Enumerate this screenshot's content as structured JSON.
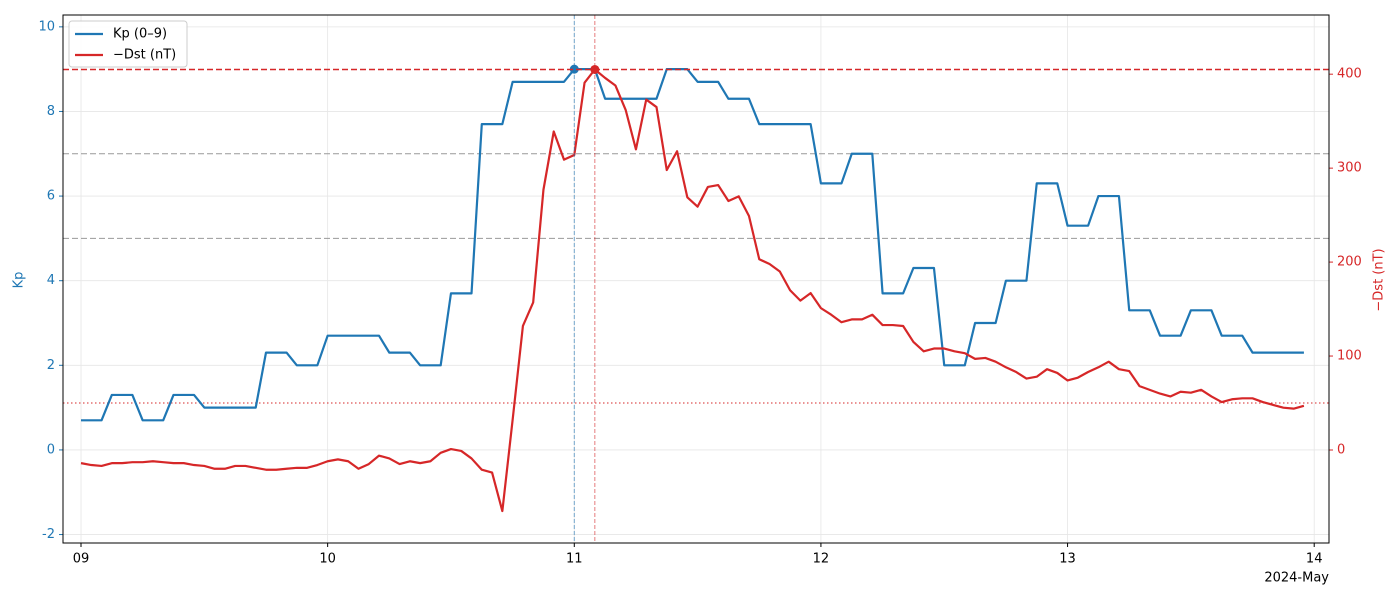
{
  "chart_data": {
    "type": "line",
    "x": [
      9,
      9.0417,
      9.0833,
      9.125,
      9.1667,
      9.2083,
      9.25,
      9.2917,
      9.3333,
      9.375,
      9.4167,
      9.4583,
      9.5,
      9.5417,
      9.5833,
      9.625,
      9.6667,
      9.7083,
      9.75,
      9.7917,
      9.8333,
      9.875,
      9.9167,
      9.9583,
      10,
      10.0417,
      10.0833,
      10.125,
      10.1667,
      10.2083,
      10.25,
      10.2917,
      10.3333,
      10.375,
      10.4167,
      10.4583,
      10.5,
      10.5417,
      10.5833,
      10.625,
      10.6667,
      10.7083,
      10.75,
      10.7917,
      10.8333,
      10.875,
      10.9167,
      10.9583,
      11,
      11.0417,
      11.0833,
      11.125,
      11.1667,
      11.2083,
      11.25,
      11.2917,
      11.3333,
      11.375,
      11.4167,
      11.4583,
      11.5,
      11.5417,
      11.5833,
      11.625,
      11.6667,
      11.7083,
      11.75,
      11.7917,
      11.8333,
      11.875,
      11.9167,
      11.9583,
      12,
      12.0417,
      12.0833,
      12.125,
      12.1667,
      12.2083,
      12.25,
      12.2917,
      12.3333,
      12.375,
      12.4167,
      12.4583,
      12.5,
      12.5417,
      12.5833,
      12.625,
      12.6667,
      12.7083,
      12.75,
      12.7917,
      12.8333,
      12.875,
      12.9167,
      12.9583,
      13,
      13.0417,
      13.0833,
      13.125,
      13.1667,
      13.2083,
      13.25,
      13.2917,
      13.3333,
      13.375,
      13.4167,
      13.4583,
      13.5,
      13.5417,
      13.5833,
      13.625,
      13.6667,
      13.7083,
      13.75,
      13.7917,
      13.8333,
      13.875,
      13.9167,
      13.9583
    ],
    "series": [
      {
        "name": "Kp (0–9)",
        "color": "#1f77b4",
        "axis": "y",
        "values": [
          0.7,
          0.7,
          0.7,
          1.3,
          1.3,
          1.3,
          0.7,
          0.7,
          0.7,
          1.3,
          1.3,
          1.3,
          1.0,
          1.0,
          1.0,
          1.0,
          1.0,
          1.0,
          2.3,
          2.3,
          2.3,
          2.0,
          2.0,
          2.0,
          2.7,
          2.7,
          2.7,
          2.7,
          2.7,
          2.7,
          2.3,
          2.3,
          2.3,
          2.0,
          2.0,
          2.0,
          3.7,
          3.7,
          3.7,
          7.7,
          7.7,
          7.7,
          8.7,
          8.7,
          8.7,
          8.7,
          8.7,
          8.7,
          9.0,
          9.0,
          9.0,
          8.3,
          8.3,
          8.3,
          8.3,
          8.3,
          8.3,
          9.0,
          9.0,
          9.0,
          8.7,
          8.7,
          8.7,
          8.3,
          8.3,
          8.3,
          7.7,
          7.7,
          7.7,
          7.7,
          7.7,
          7.7,
          6.3,
          6.3,
          6.3,
          7.0,
          7.0,
          7.0,
          3.7,
          3.7,
          3.7,
          4.3,
          4.3,
          4.3,
          2.0,
          2.0,
          2.0,
          3.0,
          3.0,
          3.0,
          4.0,
          4.0,
          4.0,
          6.3,
          6.3,
          6.3,
          5.3,
          5.3,
          5.3,
          6.0,
          6.0,
          6.0,
          3.3,
          3.3,
          3.3,
          2.7,
          2.7,
          2.7,
          3.3,
          3.3,
          3.3,
          2.7,
          2.7,
          2.7,
          2.3,
          2.3,
          2.3,
          2.3,
          2.3,
          2.3
        ]
      },
      {
        "name": "−Dst (nT)",
        "color": "#d62728",
        "axis": "y2",
        "values": [
          -14,
          -16,
          -17,
          -14,
          -14,
          -13,
          -13,
          -12,
          -13,
          -14,
          -14,
          -16,
          -17,
          -20,
          -20,
          -17,
          -17,
          -19,
          -21,
          -21,
          -20,
          -19,
          -19,
          -16,
          -12,
          -10,
          -12,
          -20,
          -15,
          -6,
          -9,
          -15,
          -12,
          -14,
          -12,
          -3,
          1,
          -1,
          -9,
          -21,
          -24,
          -65,
          32,
          132,
          157,
          277,
          339,
          309,
          314,
          391,
          405,
          396,
          388,
          362,
          320,
          373,
          365,
          298,
          318,
          269,
          259,
          280,
          282,
          265,
          270,
          249,
          203,
          198,
          190,
          170,
          159,
          167,
          151,
          144,
          136,
          139,
          139,
          144,
          133,
          133,
          132,
          115,
          105,
          108,
          108,
          105,
          103,
          97,
          98,
          94,
          88,
          83,
          76,
          78,
          86,
          82,
          74,
          77,
          83,
          88,
          94,
          86,
          84,
          68,
          64,
          60,
          57,
          62,
          61,
          64,
          57,
          51,
          54,
          55,
          55,
          51,
          48,
          45,
          44,
          47
        ]
      }
    ],
    "xlim": [
      8.927,
      14.06
    ],
    "xticks": [
      {
        "value": 9,
        "label": "09"
      },
      {
        "value": 10,
        "label": "10"
      },
      {
        "value": 11,
        "label": "11"
      },
      {
        "value": 12,
        "label": "12"
      },
      {
        "value": 13,
        "label": "13"
      },
      {
        "value": 14,
        "label": "14"
      }
    ],
    "x_offset_label": "2024-May",
    "ylim": [
      -2.2,
      10.28
    ],
    "yticks": [
      -2,
      0,
      2,
      4,
      6,
      8,
      10
    ],
    "y_label": "Kp",
    "y2lim": [
      -99,
      463
    ],
    "y2ticks": [
      0,
      100,
      200,
      300,
      400
    ],
    "y2_label": "−Dst (nT)",
    "reference_lines": [
      {
        "value": 7,
        "axis": "y",
        "color": "#999999",
        "style": "dashed"
      },
      {
        "value": 5,
        "axis": "y",
        "color": "#999999",
        "style": "dashed"
      },
      {
        "value": 50,
        "axis": "y2",
        "color": "#d62728",
        "style": "dotted"
      }
    ],
    "mark_peaks": true,
    "grid": true,
    "legend": "upper left"
  }
}
